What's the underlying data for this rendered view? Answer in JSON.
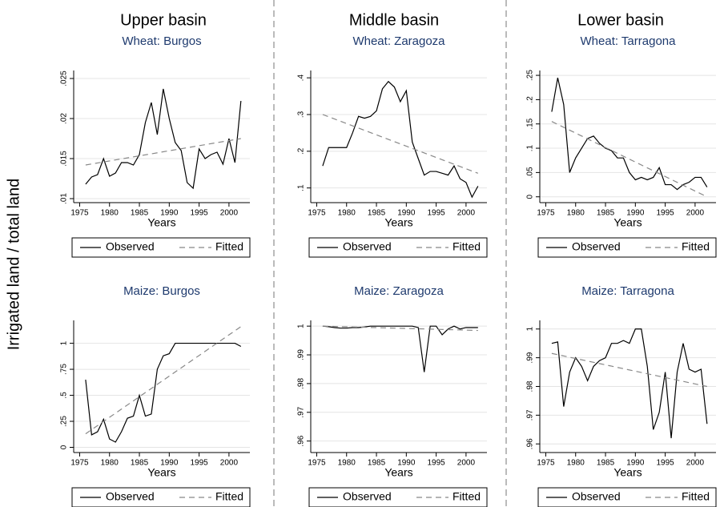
{
  "column_titles": [
    "Upper basin",
    "Middle basin",
    "Lower basin"
  ],
  "ylabel": "Irrigated land / total land",
  "chart_data": [
    {
      "type": "line",
      "title": "Wheat: Burgos",
      "xlabel": "Years",
      "x": [
        1976,
        1977,
        1978,
        1979,
        1980,
        1981,
        1982,
        1983,
        1984,
        1985,
        1986,
        1987,
        1988,
        1989,
        1990,
        1991,
        1992,
        1993,
        1994,
        1995,
        1996,
        1997,
        1998,
        1999,
        2000,
        2001,
        2002
      ],
      "series": [
        {
          "name": "Observed",
          "color": "#000000",
          "style": "solid",
          "values": [
            0.0118,
            0.0127,
            0.013,
            0.015,
            0.0128,
            0.0132,
            0.0145,
            0.0145,
            0.0142,
            0.0155,
            0.0195,
            0.022,
            0.018,
            0.0237,
            0.02,
            0.017,
            0.016,
            0.012,
            0.0113,
            0.0162,
            0.015,
            0.0155,
            0.0158,
            0.0143,
            0.0175,
            0.0145,
            0.0222
          ]
        },
        {
          "name": "Fitted",
          "color": "#888888",
          "style": "dashed",
          "x": [
            1976,
            2002
          ],
          "values": [
            0.0142,
            0.0175
          ]
        }
      ],
      "xlim": [
        1974,
        2003.5
      ],
      "xticks": [
        1975,
        1980,
        1985,
        1990,
        1995,
        2000
      ],
      "ylim": [
        0.0095,
        0.026
      ],
      "yticks": [
        {
          "value": 0.01,
          "label": ".01"
        },
        {
          "value": 0.015,
          "label": ".015"
        },
        {
          "value": 0.02,
          "label": ".02"
        },
        {
          "value": 0.025,
          "label": ".025"
        }
      ],
      "grid": true
    },
    {
      "type": "line",
      "title": "Wheat: Zaragoza",
      "xlabel": "Years",
      "x": [
        1976,
        1977,
        1978,
        1979,
        1980,
        1981,
        1982,
        1983,
        1984,
        1985,
        1986,
        1987,
        1988,
        1989,
        1990,
        1991,
        1992,
        1993,
        1994,
        1995,
        1996,
        1997,
        1998,
        1999,
        2000,
        2001,
        2002
      ],
      "series": [
        {
          "name": "Observed",
          "color": "#000000",
          "style": "solid",
          "values": [
            0.16,
            0.21,
            0.21,
            0.21,
            0.21,
            0.25,
            0.295,
            0.29,
            0.295,
            0.31,
            0.37,
            0.39,
            0.375,
            0.335,
            0.365,
            0.225,
            0.18,
            0.135,
            0.145,
            0.145,
            0.14,
            0.135,
            0.16,
            0.125,
            0.115,
            0.075,
            0.105
          ]
        },
        {
          "name": "Fitted",
          "color": "#888888",
          "style": "dashed",
          "x": [
            1976,
            2002
          ],
          "values": [
            0.3,
            0.14
          ]
        }
      ],
      "xlim": [
        1974,
        2003.5
      ],
      "xticks": [
        1975,
        1980,
        1985,
        1990,
        1995,
        2000
      ],
      "ylim": [
        0.06,
        0.42
      ],
      "yticks": [
        {
          "value": 0.1,
          "label": ".1"
        },
        {
          "value": 0.2,
          "label": ".2"
        },
        {
          "value": 0.3,
          "label": ".3"
        },
        {
          "value": 0.4,
          "label": ".4"
        }
      ],
      "grid": true
    },
    {
      "type": "line",
      "title": "Wheat: Tarragona",
      "xlabel": "Years",
      "x": [
        1976,
        1977,
        1978,
        1979,
        1980,
        1981,
        1982,
        1983,
        1984,
        1985,
        1986,
        1987,
        1988,
        1989,
        1990,
        1991,
        1992,
        1993,
        1994,
        1995,
        1996,
        1997,
        1998,
        1999,
        2000,
        2001,
        2002
      ],
      "series": [
        {
          "name": "Observed",
          "color": "#000000",
          "style": "solid",
          "values": [
            0.175,
            0.245,
            0.19,
            0.05,
            0.08,
            0.1,
            0.12,
            0.125,
            0.11,
            0.1,
            0.095,
            0.08,
            0.08,
            0.05,
            0.035,
            0.04,
            0.035,
            0.04,
            0.06,
            0.025,
            0.025,
            0.015,
            0.025,
            0.03,
            0.04,
            0.04,
            0.02
          ]
        },
        {
          "name": "Fitted",
          "color": "#888888",
          "style": "dashed",
          "x": [
            1976,
            2002
          ],
          "values": [
            0.155,
            0
          ]
        }
      ],
      "xlim": [
        1974,
        2003.5
      ],
      "xticks": [
        1975,
        1980,
        1985,
        1990,
        1995,
        2000
      ],
      "ylim": [
        -0.012,
        0.26
      ],
      "yticks": [
        0,
        {
          "value": 0.05,
          "label": ".05"
        },
        {
          "value": 0.1,
          "label": ".1"
        },
        {
          "value": 0.15,
          "label": ".15"
        },
        {
          "value": 0.2,
          "label": ".2"
        },
        {
          "value": 0.25,
          "label": ".25"
        }
      ],
      "grid": true
    },
    {
      "type": "line",
      "title": "Maize: Burgos",
      "xlabel": "Years",
      "x": [
        1976,
        1977,
        1978,
        1979,
        1980,
        1981,
        1982,
        1983,
        1984,
        1985,
        1986,
        1987,
        1988,
        1989,
        1990,
        1991,
        1992,
        1993,
        1994,
        1995,
        1996,
        1997,
        1998,
        1999,
        2000,
        2001,
        2002
      ],
      "series": [
        {
          "name": "Observed",
          "color": "#000000",
          "style": "solid",
          "values": [
            0.65,
            0.12,
            0.15,
            0.27,
            0.08,
            0.05,
            0.15,
            0.28,
            0.3,
            0.5,
            0.3,
            0.32,
            0.75,
            0.88,
            0.9,
            1,
            1,
            1,
            1,
            1,
            1,
            1,
            1,
            1,
            1,
            1,
            0.97
          ]
        },
        {
          "name": "Fitted",
          "color": "#888888",
          "style": "dashed",
          "x": [
            1976,
            2002
          ],
          "values": [
            0.13,
            1.16
          ]
        }
      ],
      "xlim": [
        1974,
        2003.5
      ],
      "xticks": [
        1975,
        1980,
        1985,
        1990,
        1995,
        2000
      ],
      "ylim": [
        -0.05,
        1.22
      ],
      "yticks": [
        0,
        {
          "value": 0.25,
          "label": ".25"
        },
        {
          "value": 0.5,
          "label": ".5"
        },
        {
          "value": 0.75,
          "label": ".75"
        },
        1
      ],
      "grid": true
    },
    {
      "type": "line",
      "title": "Maize: Zaragoza",
      "xlabel": "Years",
      "x": [
        1976,
        1977,
        1978,
        1979,
        1980,
        1981,
        1982,
        1983,
        1984,
        1985,
        1986,
        1987,
        1988,
        1989,
        1990,
        1991,
        1992,
        1993,
        1994,
        1995,
        1996,
        1997,
        1998,
        1999,
        2000,
        2001,
        2002
      ],
      "series": [
        {
          "name": "Observed",
          "color": "#000000",
          "style": "solid",
          "values": [
            1,
            0.9998,
            0.9995,
            0.9993,
            0.9993,
            0.9995,
            0.9995,
            0.9997,
            1,
            1,
            1,
            1,
            1,
            1,
            1,
            1,
            0.9995,
            0.984,
            1,
            1,
            0.997,
            0.999,
            1,
            0.999,
            0.9995,
            0.9995,
            0.9995
          ]
        },
        {
          "name": "Fitted",
          "color": "#888888",
          "style": "dashed",
          "x": [
            1976,
            2002
          ],
          "values": [
            1,
            0.9985
          ]
        }
      ],
      "xlim": [
        1974,
        2003.5
      ],
      "xticks": [
        1975,
        1980,
        1985,
        1990,
        1995,
        2000
      ],
      "ylim": [
        0.956,
        1.002
      ],
      "yticks": [
        {
          "value": 0.96,
          "label": ".96"
        },
        {
          "value": 0.97,
          "label": ".97"
        },
        {
          "value": 0.98,
          "label": ".98"
        },
        {
          "value": 0.99,
          "label": ".99"
        },
        1
      ],
      "grid": true
    },
    {
      "type": "line",
      "title": "Maize: Tarragona",
      "xlabel": "Years",
      "x": [
        1976,
        1977,
        1978,
        1979,
        1980,
        1981,
        1982,
        1983,
        1984,
        1985,
        1986,
        1987,
        1988,
        1989,
        1990,
        1991,
        1992,
        1993,
        1994,
        1995,
        1996,
        1997,
        1998,
        1999,
        2000,
        2001,
        2002
      ],
      "series": [
        {
          "name": "Observed",
          "color": "#000000",
          "style": "solid",
          "values": [
            0.995,
            0.9955,
            0.973,
            0.985,
            0.99,
            0.987,
            0.982,
            0.987,
            0.989,
            0.99,
            0.995,
            0.995,
            0.996,
            0.995,
            1,
            1,
            0.987,
            0.965,
            0.971,
            0.985,
            0.962,
            0.985,
            0.995,
            0.986,
            0.985,
            0.986,
            0.967
          ]
        },
        {
          "name": "Fitted",
          "color": "#888888",
          "style": "dashed",
          "x": [
            1976,
            2002
          ],
          "values": [
            0.9915,
            0.98
          ]
        }
      ],
      "xlim": [
        1974,
        2003.5
      ],
      "xticks": [
        1975,
        1980,
        1985,
        1990,
        1995,
        2000
      ],
      "ylim": [
        0.957,
        1.003
      ],
      "yticks": [
        {
          "value": 0.96,
          "label": ".96"
        },
        {
          "value": 0.97,
          "label": ".97"
        },
        {
          "value": 0.98,
          "label": ".98"
        },
        {
          "value": 0.99,
          "label": ".99"
        },
        1
      ],
      "grid": true
    }
  ]
}
